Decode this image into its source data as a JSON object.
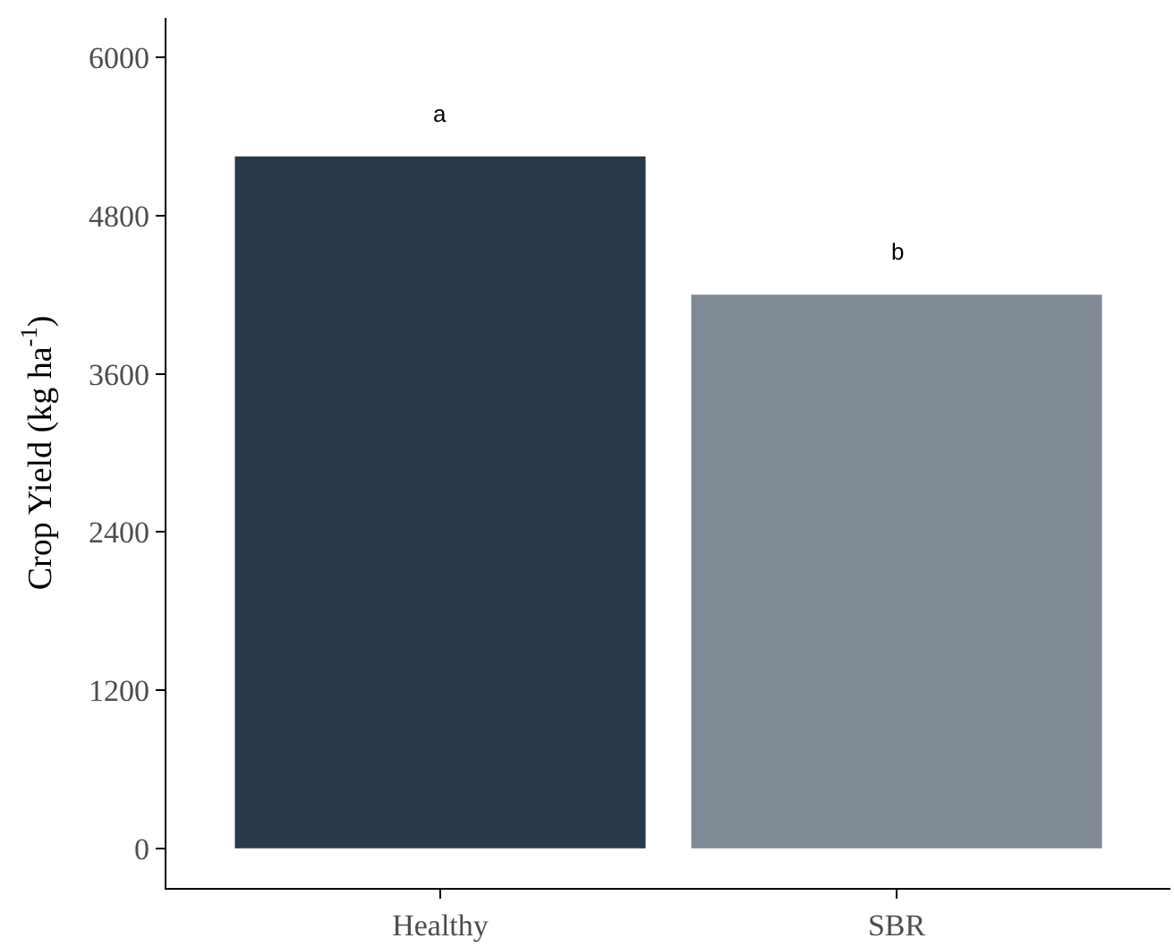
{
  "chart_data": {
    "type": "bar",
    "ylabel": "Crop Yield (kg ha$^{-1}$)",
    "categories": [
      "Healthy",
      "SBR"
    ],
    "values": [
      5250,
      4200
    ],
    "colors": [
      "#27394a",
      "#7f8a95"
    ],
    "ylim": [
      -300,
      6300
    ],
    "yticks": [
      0,
      1200,
      2400,
      3600,
      4800,
      6000
    ],
    "annotations": [
      "a",
      "b"
    ]
  }
}
